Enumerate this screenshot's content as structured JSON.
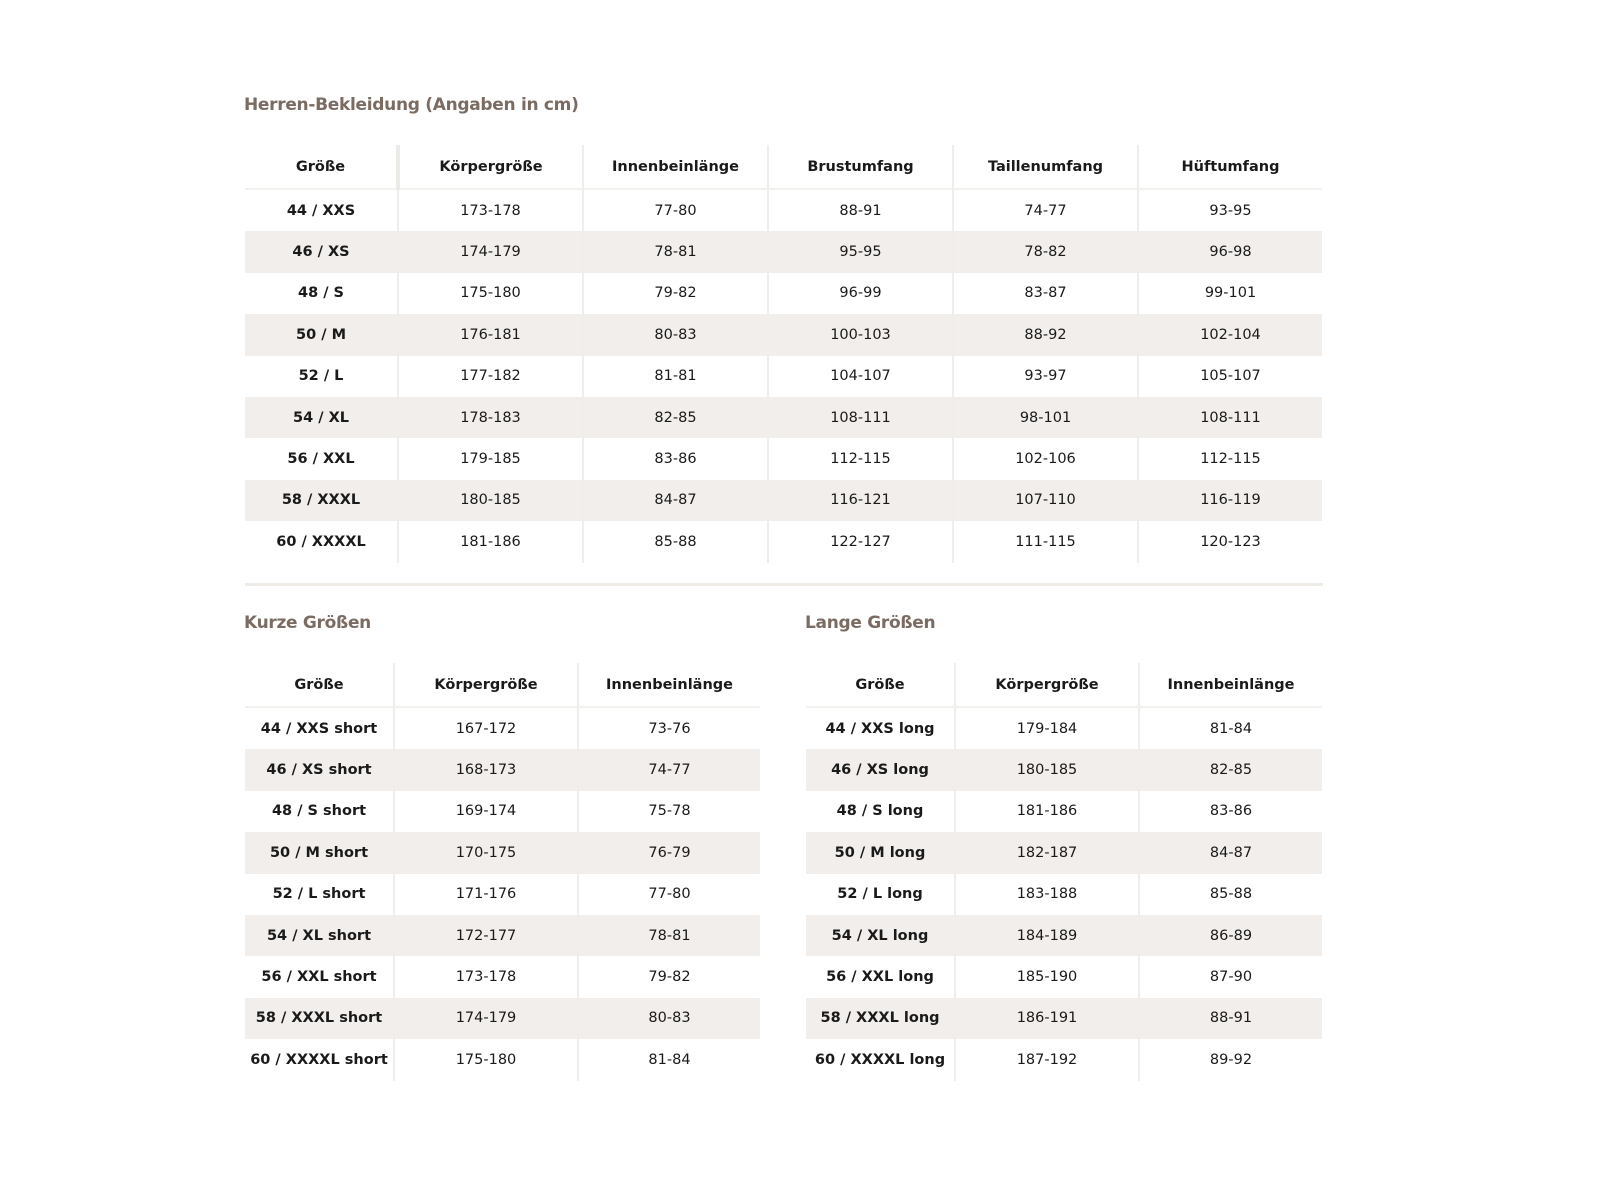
{
  "colors": {
    "title": "#7b6c63",
    "stripe": "#f1eeeb"
  },
  "main": {
    "title": "Herren-Bekleidung (Angaben in cm)",
    "headers": [
      "Größe",
      "Körpergröße",
      "Innenbeinlänge",
      "Brustumfang",
      "Taillenumfang",
      "Hüftumfang"
    ],
    "rows": [
      [
        "44 / XXS",
        "173-178",
        "77-80",
        "88-91",
        "74-77",
        "93-95"
      ],
      [
        "46 / XS",
        "174-179",
        "78-81",
        "95-95",
        "78-82",
        "96-98"
      ],
      [
        "48 / S",
        "175-180",
        "79-82",
        "96-99",
        "83-87",
        "99-101"
      ],
      [
        "50 / M",
        "176-181",
        "80-83",
        "100-103",
        "88-92",
        "102-104"
      ],
      [
        "52 / L",
        "177-182",
        "81-81",
        "104-107",
        "93-97",
        "105-107"
      ],
      [
        "54 / XL",
        "178-183",
        "82-85",
        "108-111",
        "98-101",
        "108-111"
      ],
      [
        "56 / XXL",
        "179-185",
        "83-86",
        "112-115",
        "102-106",
        "112-115"
      ],
      [
        "58 / XXXL",
        "180-185",
        "84-87",
        "116-121",
        "107-110",
        "116-119"
      ],
      [
        "60 / XXXXL",
        "181-186",
        "85-88",
        "122-127",
        "111-115",
        "120-123"
      ]
    ]
  },
  "short": {
    "title": "Kurze Größen",
    "headers": [
      "Größe",
      "Körpergröße",
      "Innenbeinlänge"
    ],
    "rows": [
      [
        "44 / XXS short",
        "167-172",
        "73-76"
      ],
      [
        "46 / XS short",
        "168-173",
        "74-77"
      ],
      [
        "48 / S short",
        "169-174",
        "75-78"
      ],
      [
        "50 / M short",
        "170-175",
        "76-79"
      ],
      [
        "52 / L short",
        "171-176",
        "77-80"
      ],
      [
        "54 / XL short",
        "172-177",
        "78-81"
      ],
      [
        "56 / XXL short",
        "173-178",
        "79-82"
      ],
      [
        "58 / XXXL short",
        "174-179",
        "80-83"
      ],
      [
        "60 / XXXXL short",
        "175-180",
        "81-84"
      ]
    ]
  },
  "long": {
    "title": "Lange Größen",
    "headers": [
      "Größe",
      "Körpergröße",
      "Innenbeinlänge"
    ],
    "rows": [
      [
        "44 / XXS long",
        "179-184",
        "81-84"
      ],
      [
        "46 / XS long",
        "180-185",
        "82-85"
      ],
      [
        "48 / S long",
        "181-186",
        "83-86"
      ],
      [
        "50 / M long",
        "182-187",
        "84-87"
      ],
      [
        "52 / L long",
        "183-188",
        "85-88"
      ],
      [
        "54 / XL long",
        "184-189",
        "86-89"
      ],
      [
        "56 / XXL long",
        "185-190",
        "87-90"
      ],
      [
        "58 / XXXL long",
        "186-191",
        "88-91"
      ],
      [
        "60 / XXXXL long",
        "187-192",
        "89-92"
      ]
    ]
  }
}
